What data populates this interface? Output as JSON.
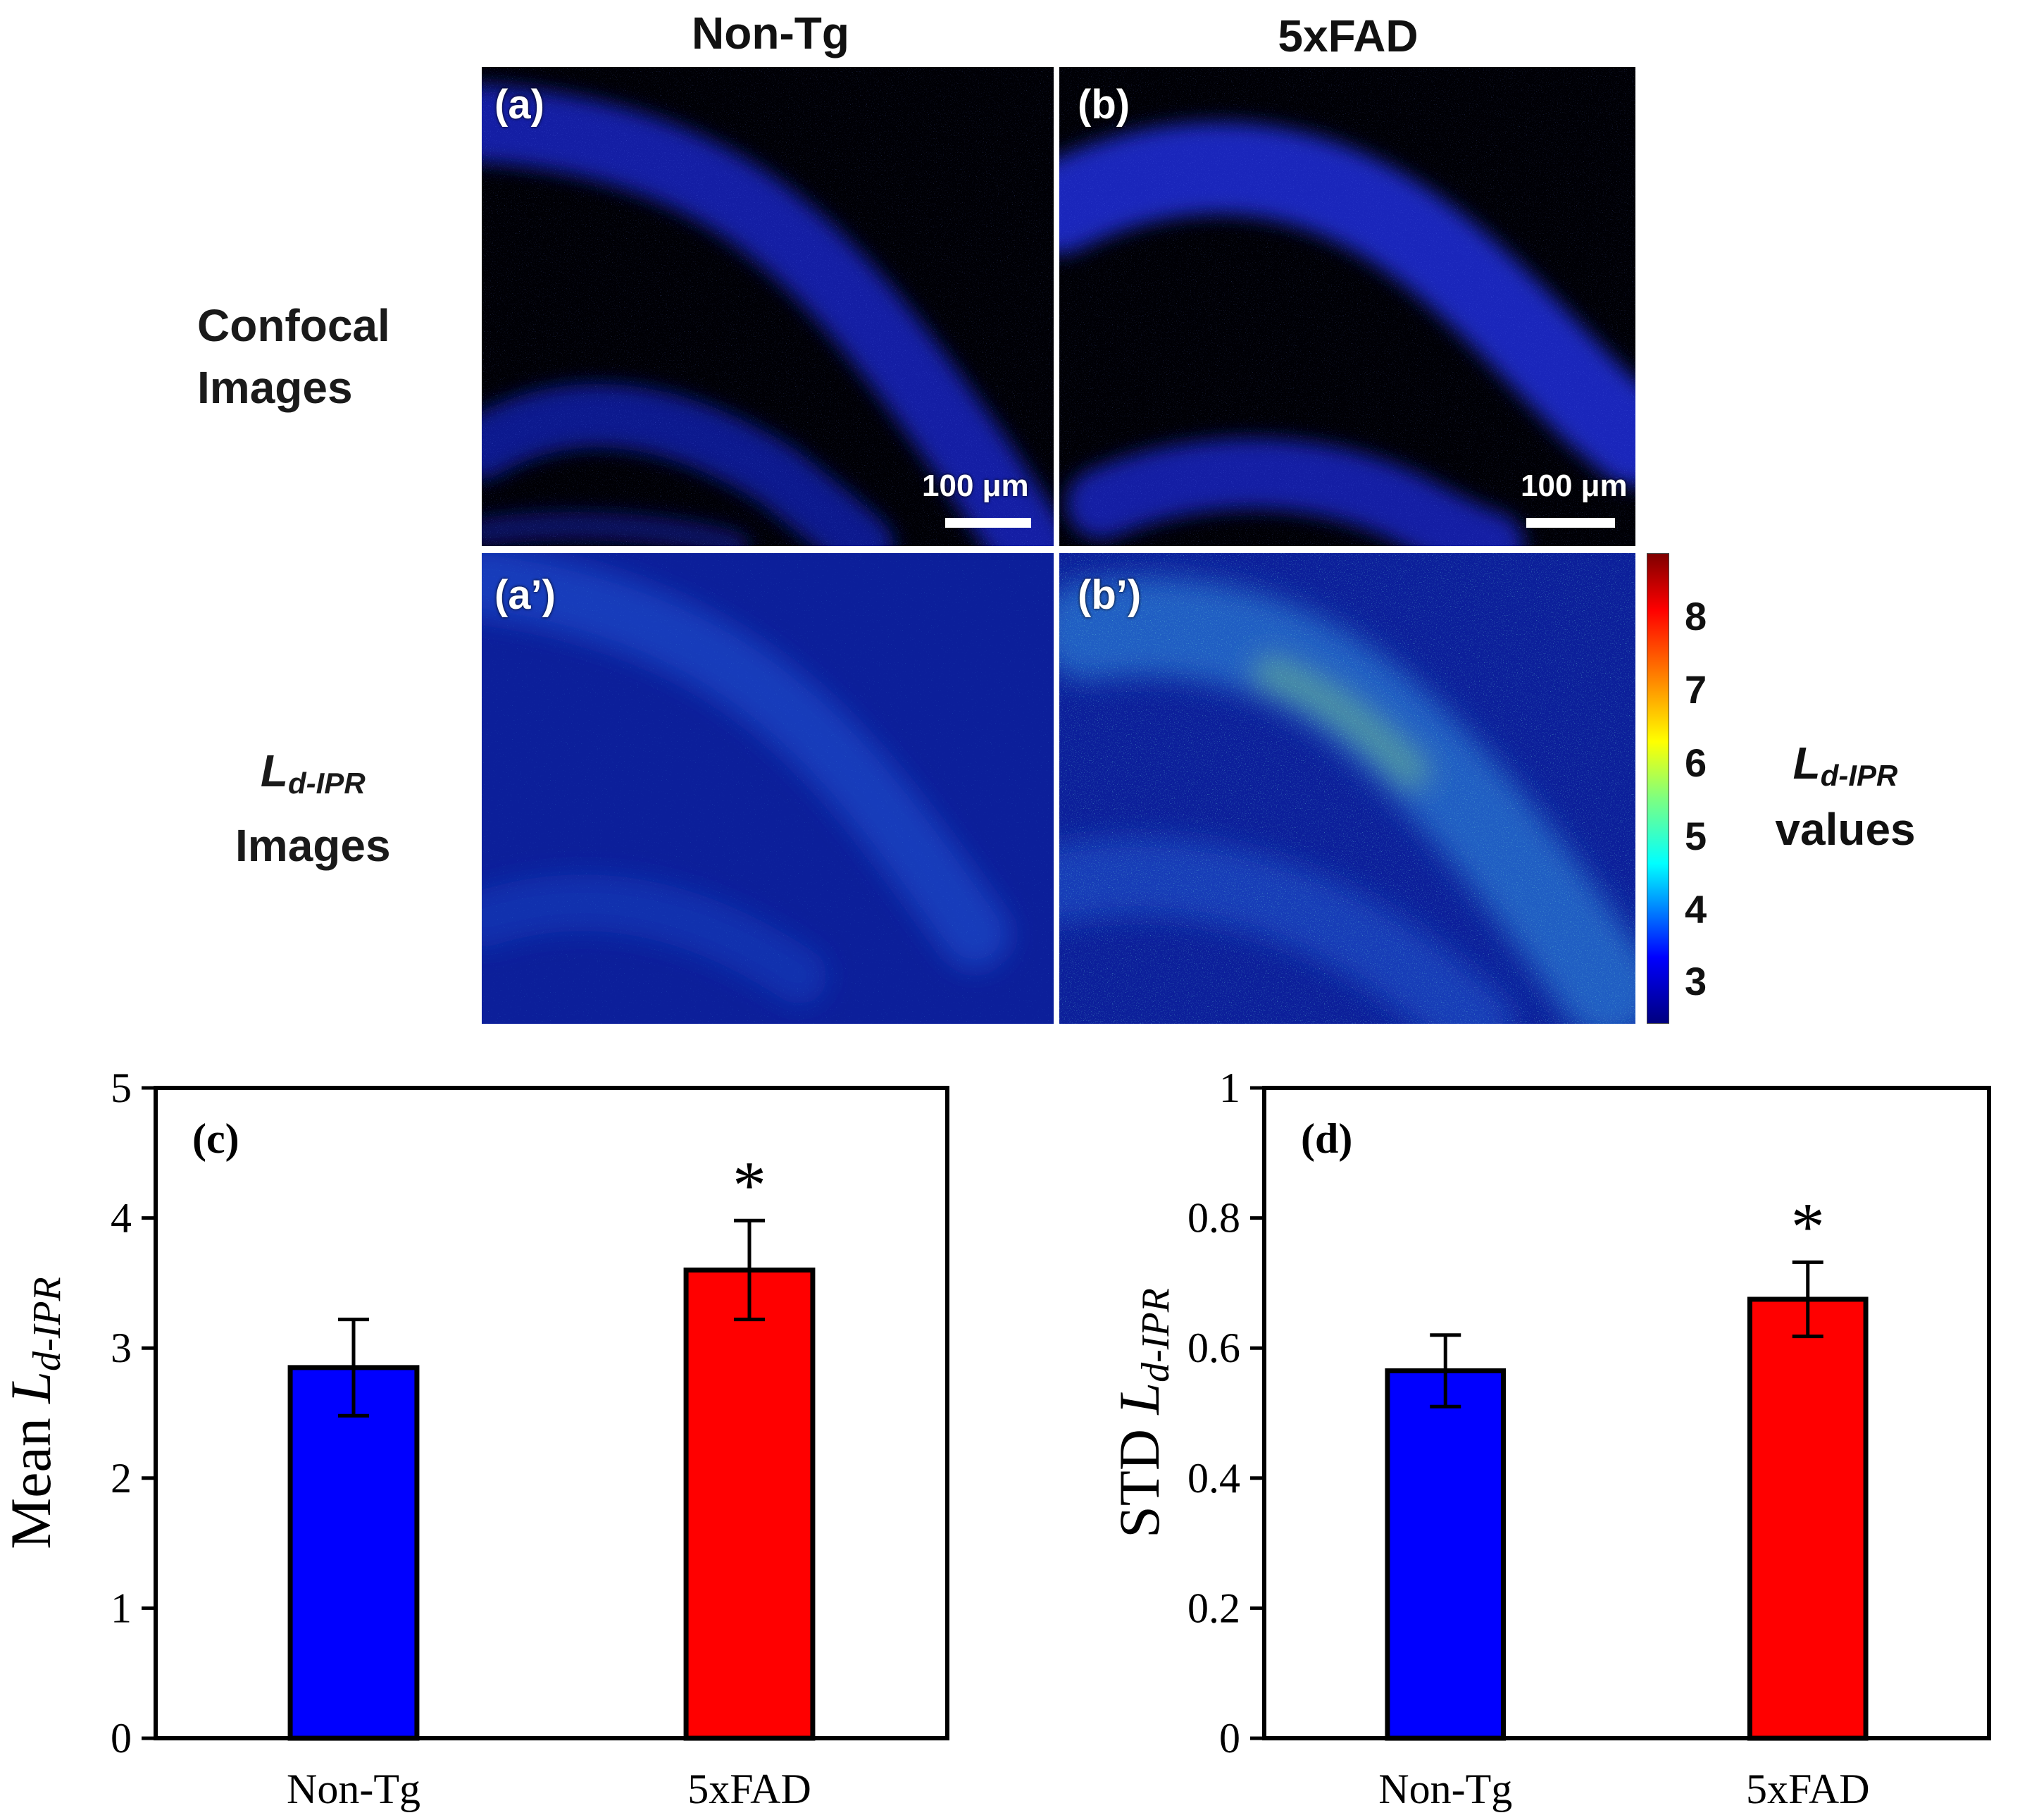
{
  "figure": {
    "col_headers": [
      "Non-Tg",
      "5xFAD"
    ],
    "row_labels": {
      "confocal": [
        "Confocal",
        "Images"
      ],
      "ldipr": {
        "symbol": "L",
        "subscript": "d-IPR",
        "line2": "Images"
      }
    },
    "panels": {
      "a": "(a)",
      "b": "(b)",
      "a_prime": "(a’)",
      "b_prime": "(b’)"
    },
    "scale_bar": "100 μm",
    "colorbar": {
      "ticks": [
        "8",
        "7",
        "6",
        "5",
        "4",
        "3"
      ],
      "title_symbol": "L",
      "title_subscript": "d-IPR",
      "title_line2": "values",
      "colors": [
        "#00007f",
        "#0000ff",
        "#00ffff",
        "#7fff7f",
        "#ffff00",
        "#ff7f00",
        "#ff0000",
        "#7f0000"
      ]
    }
  },
  "chart_data": [
    {
      "type": "bar",
      "panel_label": "(c)",
      "categories": [
        "Non-Tg",
        "5xFAD"
      ],
      "values": [
        2.85,
        3.6
      ],
      "errors": [
        0.37,
        0.38
      ],
      "colors": [
        "#0000ff",
        "#ff0000"
      ],
      "significance": [
        "",
        "*"
      ],
      "ylabel": "Mean",
      "ylabel_symbol": "L",
      "ylabel_subscript": "d-IPR",
      "ylim": [
        0,
        5
      ],
      "yticks": [
        "0",
        "1",
        "2",
        "3",
        "4",
        "5"
      ]
    },
    {
      "type": "bar",
      "panel_label": "(d)",
      "categories": [
        "Non-Tg",
        "5xFAD"
      ],
      "values": [
        0.565,
        0.675
      ],
      "errors": [
        0.055,
        0.057
      ],
      "colors": [
        "#0000ff",
        "#ff0000"
      ],
      "significance": [
        "",
        "*"
      ],
      "ylabel": "STD",
      "ylabel_symbol": "L",
      "ylabel_subscript": "d-IPR",
      "ylim": [
        0,
        1
      ],
      "yticks": [
        "0",
        "0.2",
        "0.4",
        "0.6",
        "0.8",
        "1"
      ]
    }
  ]
}
